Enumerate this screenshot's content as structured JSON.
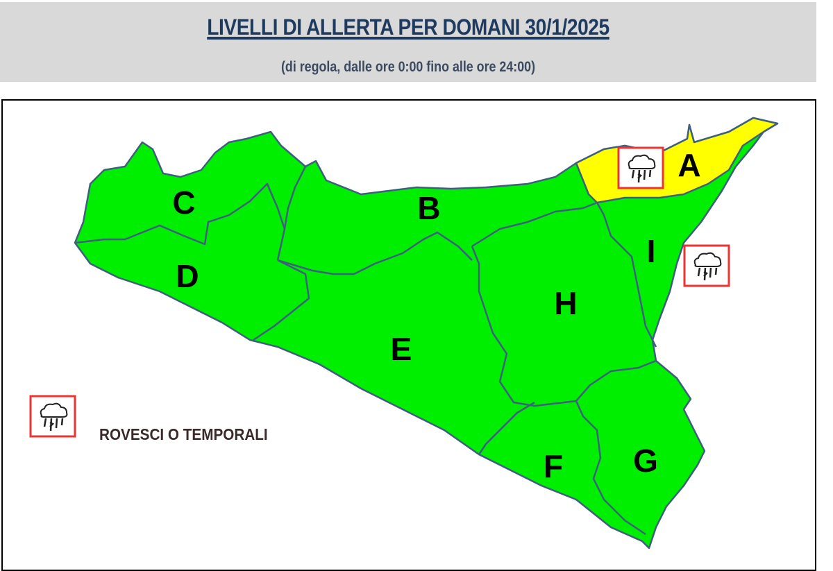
{
  "header": {
    "title": "LIVELLI DI ALLERTA PER DOMANI 30/1/2025",
    "subtitle": "(di regola, dalle ore 0:00 fino alle ore 24:00)"
  },
  "colors": {
    "green_level": "#00ee00",
    "yellow_level": "#ffff00",
    "border": "#3f5f7f",
    "icon_frame": "#ee3333",
    "title": "#1f3a5f"
  },
  "zones": [
    {
      "label": "A",
      "level": "yellow",
      "icon": "storm-icon"
    },
    {
      "label": "B",
      "level": "green"
    },
    {
      "label": "C",
      "level": "green"
    },
    {
      "label": "D",
      "level": "green"
    },
    {
      "label": "E",
      "level": "green"
    },
    {
      "label": "F",
      "level": "green"
    },
    {
      "label": "G",
      "level": "green"
    },
    {
      "label": "H",
      "level": "green"
    },
    {
      "label": "I",
      "level": "green",
      "icon": "storm-icon"
    }
  ],
  "legend": {
    "icon": "storm-icon",
    "label": "ROVESCI O TEMPORALI"
  }
}
